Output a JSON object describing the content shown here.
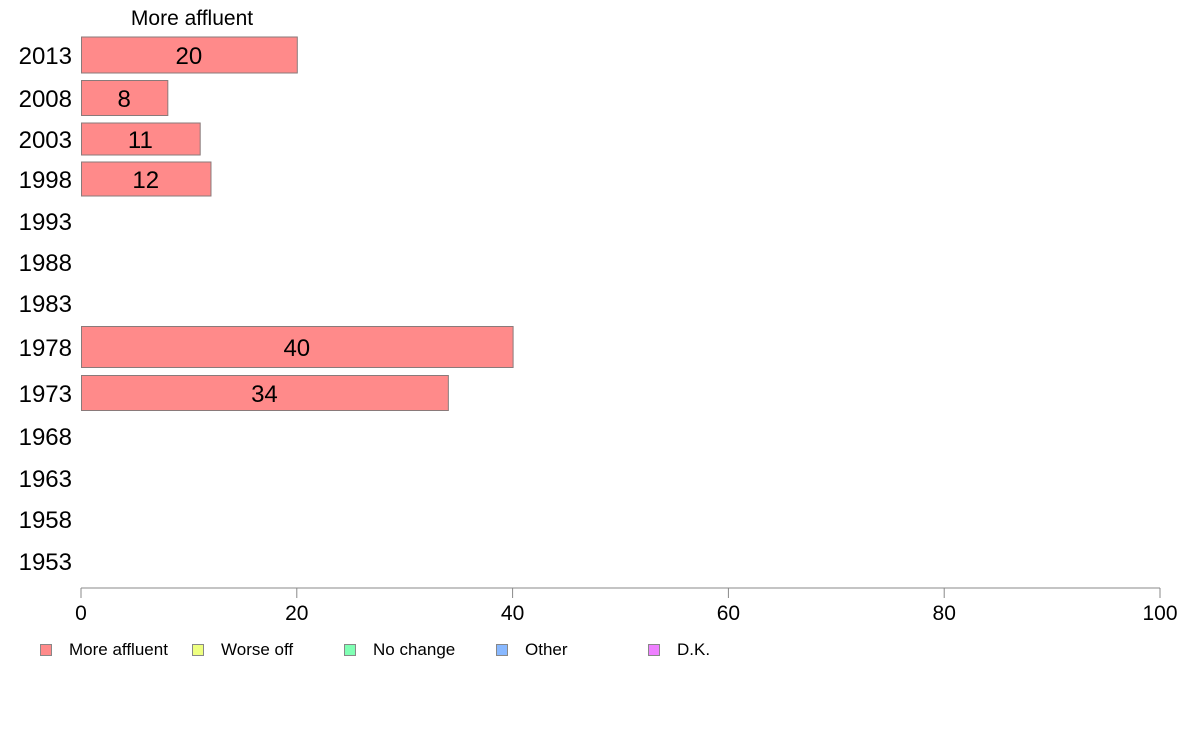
{
  "chart_data": {
    "type": "bar",
    "orientation": "horizontal",
    "series_title": "More affluent",
    "categories": [
      "2013",
      "2008",
      "2003",
      "1998",
      "1993",
      "1988",
      "1983",
      "1978",
      "1973",
      "1968",
      "1963",
      "1958",
      "1953"
    ],
    "series": [
      {
        "name": "More affluent",
        "values": [
          20,
          8,
          11,
          12,
          null,
          null,
          null,
          40,
          34,
          null,
          null,
          null,
          null
        ],
        "color": "#ff8a8a"
      }
    ],
    "xlim": [
      0,
      100
    ],
    "xticks": [
      "0",
      "20",
      "40",
      "60",
      "80",
      "100"
    ],
    "legend": {
      "placement": "bottom-left",
      "items": [
        {
          "label": "More affluent",
          "color": "#ff8a8a"
        },
        {
          "label": "Worse off",
          "color": "#eeff80"
        },
        {
          "label": "No change",
          "color": "#80ffb4"
        },
        {
          "label": "Other",
          "color": "#88b8ff"
        },
        {
          "label": "D.K.",
          "color": "#ee80ff"
        }
      ]
    },
    "grid": false
  }
}
